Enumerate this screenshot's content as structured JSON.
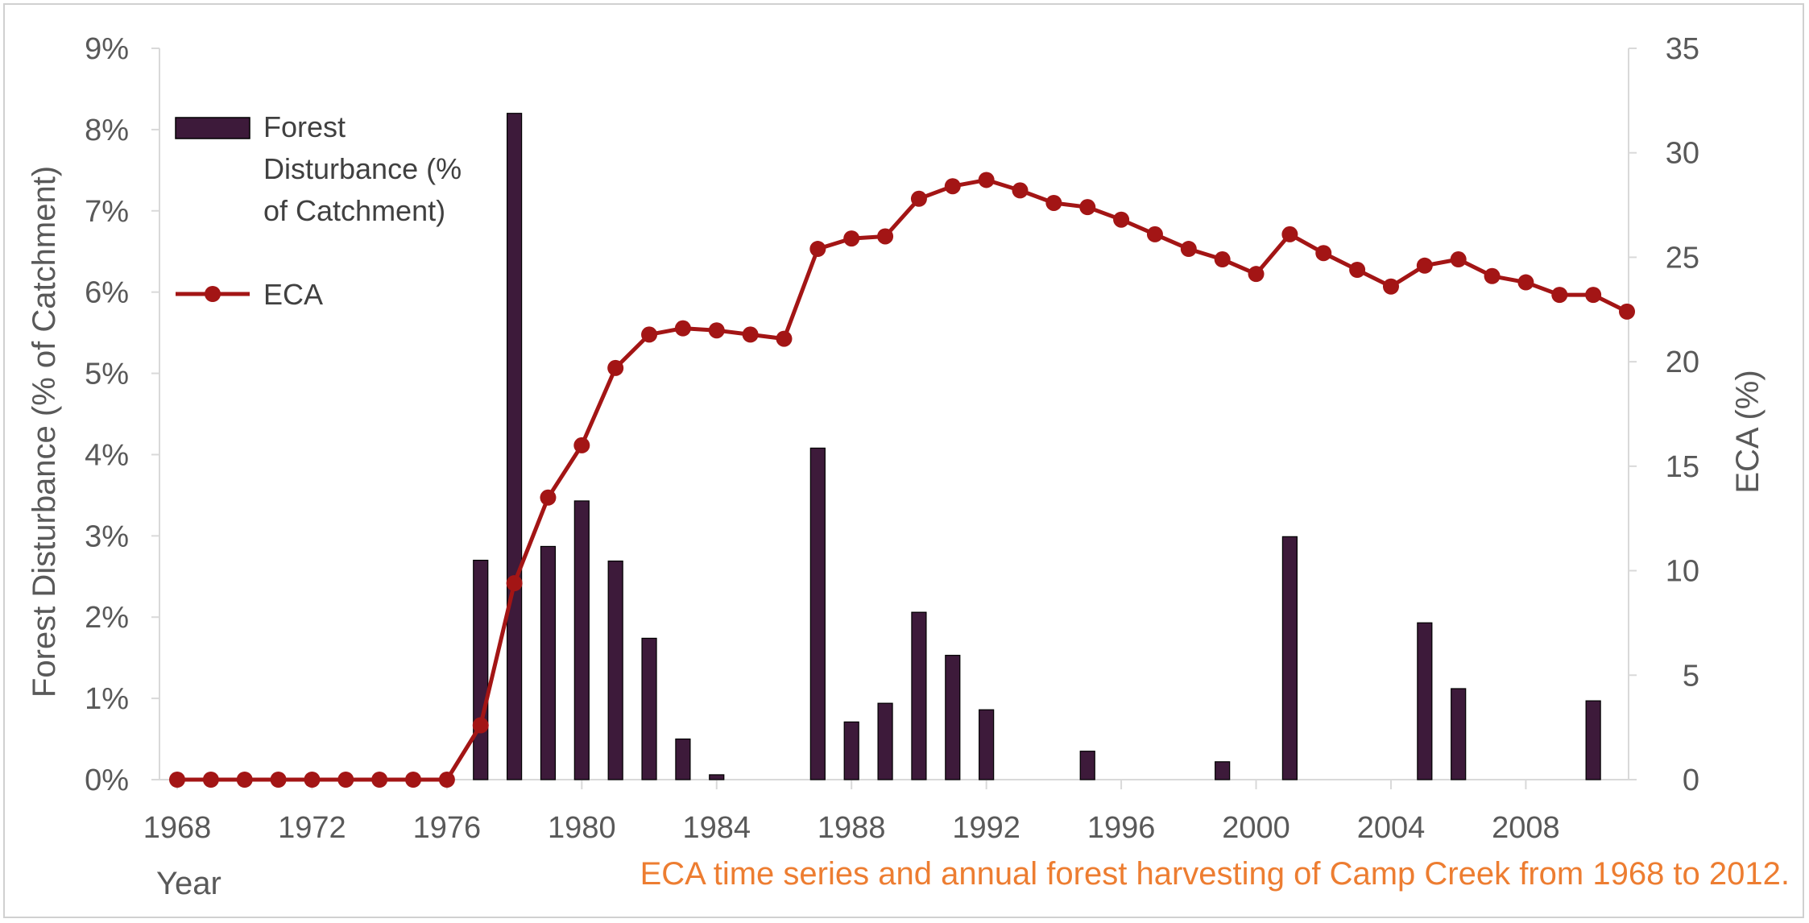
{
  "chart_data": {
    "type": "bar+line",
    "x": [
      1968,
      1969,
      1970,
      1971,
      1972,
      1973,
      1974,
      1975,
      1976,
      1977,
      1978,
      1979,
      1980,
      1981,
      1982,
      1983,
      1984,
      1985,
      1986,
      1987,
      1988,
      1989,
      1990,
      1991,
      1992,
      1993,
      1994,
      1995,
      1996,
      1997,
      1998,
      1999,
      2000,
      2001,
      2002,
      2003,
      2004,
      2005,
      2006,
      2007,
      2008,
      2009,
      2010,
      2011
    ],
    "x_ticks": [
      "1968",
      "1972",
      "1976",
      "1980",
      "1984",
      "1988",
      "1992",
      "1996",
      "2000",
      "2004",
      "2008"
    ],
    "xlabel": "Year",
    "ylabel_left": "Forest Disturbance (% of Catchment)",
    "ylabel_right": "ECA (%)",
    "ylim_left": [
      0,
      9
    ],
    "ylim_right": [
      0,
      35
    ],
    "yticks_left": [
      "0%",
      "1%",
      "2%",
      "3%",
      "4%",
      "5%",
      "6%",
      "7%",
      "8%",
      "9%"
    ],
    "yticks_right": [
      "0",
      "5",
      "10",
      "15",
      "20",
      "25",
      "30",
      "35"
    ],
    "legend_position": "top-left",
    "series": [
      {
        "name": "Forest Disturbance (% of Catchment)",
        "type": "bar",
        "color": "#3d1a3a",
        "values": [
          0,
          0,
          0,
          0,
          0,
          0,
          0,
          0,
          0,
          2.7,
          8.2,
          2.87,
          3.43,
          2.69,
          1.74,
          0.5,
          0.06,
          0,
          0,
          4.08,
          0.71,
          0.94,
          2.06,
          1.53,
          0.86,
          0,
          0,
          0.35,
          0,
          0,
          0,
          0.22,
          0,
          2.99,
          0,
          0,
          0,
          1.93,
          1.12,
          0,
          0,
          0,
          0.97,
          0
        ]
      },
      {
        "name": "ECA",
        "type": "line",
        "color": "#a31515",
        "values": [
          0,
          0,
          0,
          0,
          0,
          0,
          0,
          0,
          0,
          2.6,
          9.4,
          13.5,
          16.0,
          19.7,
          21.3,
          21.6,
          21.5,
          21.3,
          21.1,
          25.4,
          25.9,
          26.0,
          27.8,
          28.4,
          28.7,
          28.2,
          27.6,
          27.4,
          26.8,
          26.1,
          25.4,
          24.9,
          24.2,
          26.1,
          25.2,
          24.4,
          23.6,
          24.6,
          24.9,
          24.1,
          23.8,
          23.2,
          23.2,
          22.4
        ]
      }
    ],
    "legend_labels": {
      "bar": [
        "Forest",
        "Disturbance (%",
        "of Catchment)"
      ],
      "line": "ECA"
    },
    "caption": "ECA time series and annual forest harvesting of Camp Creek from 1968 to 2012."
  }
}
